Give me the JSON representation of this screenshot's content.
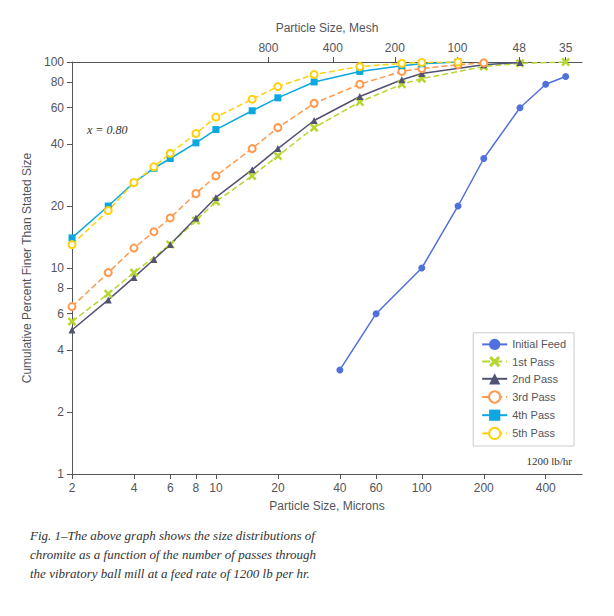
{
  "chart_data": {
    "type": "line",
    "xlabel": "Particle Size, Microns",
    "ylabel": "Cumulative Percent Finer Than Stated Size",
    "x2label": "Particle Size, Mesh",
    "annotation": "x = 0.80",
    "legend_note": "1200 lb/hr",
    "caption": "Fig. 1–The above graph shows the size distributions of\nchromite as a function of the number of passes through\nthe vibratory ball mill at a feed rate of 1200 lb per hr.",
    "log": true,
    "grid": false,
    "legend": "lower right",
    "xlim": [
      2,
      600
    ],
    "ylim": [
      1,
      100
    ],
    "xticks": [
      2,
      4,
      6,
      8,
      10,
      20,
      40,
      60,
      100,
      200,
      400
    ],
    "yticks": [
      1,
      2,
      4,
      6,
      8,
      10,
      20,
      40,
      60,
      80,
      100
    ],
    "x2lim": [
      2,
      600
    ],
    "x2ticks": [
      {
        "value": 18,
        "label": "800"
      },
      {
        "value": 37,
        "label": "400"
      },
      {
        "value": 74,
        "label": "200"
      },
      {
        "value": 149,
        "label": "100"
      },
      {
        "value": 297,
        "label": "48"
      },
      {
        "value": 500,
        "label": "35"
      }
    ],
    "series": [
      {
        "name": "Initial Feed",
        "marker": "circle",
        "line_style": "solid",
        "x": [
          40,
          60,
          100,
          150,
          200,
          300,
          400,
          500
        ],
        "values": [
          3.2,
          6.0,
          10.0,
          20.0,
          34.0,
          60.0,
          78.0,
          85.0
        ]
      },
      {
        "name": "1st Pass",
        "marker": "x",
        "line_style": "dashed",
        "x": [
          2,
          3,
          4,
          6,
          8,
          10,
          15,
          20,
          30,
          50,
          80,
          100,
          200,
          300,
          500
        ],
        "values": [
          5.5,
          7.5,
          9.5,
          13.0,
          17.0,
          21.0,
          28.0,
          35.0,
          48.0,
          64.0,
          78.0,
          83.0,
          95.0,
          98.5,
          100.0
        ]
      },
      {
        "name": "2nd Pass",
        "marker": "triangle",
        "line_style": "solid",
        "x": [
          2,
          3,
          4,
          5,
          6,
          8,
          10,
          15,
          20,
          30,
          50,
          80,
          100,
          200,
          300
        ],
        "values": [
          5.0,
          7.0,
          9.0,
          11.0,
          13.0,
          17.5,
          22.0,
          30.0,
          38.0,
          52.0,
          68.0,
          82.0,
          88.0,
          97.0,
          99.5
        ]
      },
      {
        "name": "3rd Pass",
        "marker": "circle_open",
        "line_style": "dashed",
        "x": [
          2,
          3,
          4,
          5,
          6,
          8,
          10,
          15,
          20,
          30,
          50,
          80,
          100,
          150,
          200
        ],
        "values": [
          6.5,
          9.5,
          12.5,
          15.0,
          17.5,
          23.0,
          28.0,
          38.0,
          48.0,
          63.0,
          78.0,
          90.0,
          93.0,
          97.0,
          99.0
        ]
      },
      {
        "name": "4th Pass",
        "marker": "square",
        "line_style": "solid",
        "x": [
          2,
          3,
          4,
          5,
          6,
          8,
          10,
          15,
          20,
          30,
          50,
          80,
          100,
          150
        ],
        "values": [
          14.0,
          20.0,
          26.0,
          30.5,
          34.0,
          40.5,
          47.0,
          58.0,
          67.0,
          80.0,
          90.0,
          96.0,
          98.0,
          100.0
        ]
      },
      {
        "name": "5th Pass",
        "marker": "circle_open",
        "line_style": "dashed",
        "x": [
          2,
          3,
          4,
          5,
          6,
          8,
          10,
          15,
          20,
          30,
          50,
          80,
          100,
          150
        ],
        "values": [
          13.0,
          19.0,
          26.0,
          31.0,
          36.0,
          45.0,
          54.0,
          66.0,
          76.0,
          87.0,
          95.0,
          98.5,
          99.5,
          100.0
        ]
      }
    ]
  }
}
